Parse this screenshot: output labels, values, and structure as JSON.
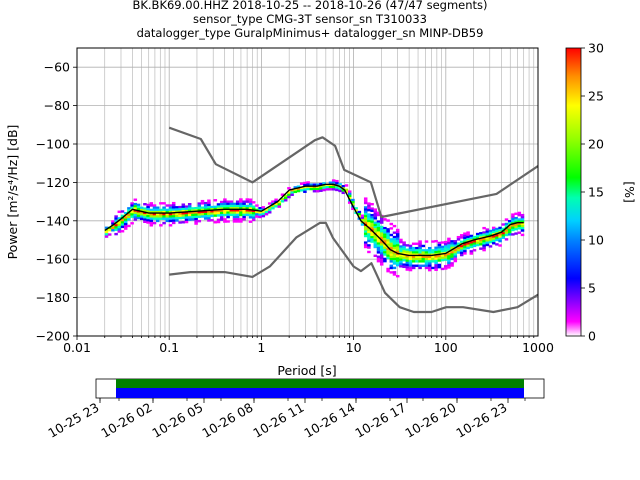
{
  "chart_data": {
    "type": "heatmap",
    "title_lines": [
      "BK.BK69.00.HHZ   2018-10-25 -- 2018-10-26  (47/47 segments)",
      "sensor_type CMG-3T sensor_sn T310033",
      "datalogger_type GuralpMinimus+ datalogger_sn MINP-DB59"
    ],
    "xlabel": "Period [s]",
    "ylabel": "Power [m²/s⁴/Hz] [dB]",
    "xscale": "log",
    "xlim": [
      0.01,
      1000
    ],
    "ylim": [
      -200,
      -50
    ],
    "x_tick_labels": [
      "0.01",
      "0.1",
      "1",
      "10",
      "100",
      "1000"
    ],
    "y_ticks": [
      -60,
      -80,
      -100,
      -120,
      -140,
      -160,
      -180,
      -200
    ],
    "grid": true,
    "colorbar": {
      "label": "[%]",
      "min": 0,
      "max": 30,
      "ticks": [
        0,
        5,
        10,
        15,
        20,
        25,
        30
      ]
    },
    "series": [
      {
        "role": "noise-model-high",
        "x": [
          0.1,
          0.22,
          0.32,
          0.8,
          3.8,
          4.6,
          6.3,
          7.9,
          15.4,
          20,
          354.8,
          1000
        ],
        "y": [
          -91.5,
          -97.4,
          -110.5,
          -120,
          -98,
          -96.5,
          -101,
          -113.5,
          -120,
          -138,
          -126,
          -111.5
        ]
      },
      {
        "role": "noise-model-low",
        "x": [
          0.1,
          0.17,
          0.4,
          0.8,
          1.24,
          2.4,
          4.3,
          5,
          6,
          10,
          12,
          15.6,
          21.9,
          31.6,
          45,
          70,
          101,
          154,
          328,
          600,
          1000
        ],
        "y": [
          -168,
          -166.7,
          -166.7,
          -169.2,
          -163.7,
          -148.6,
          -141.1,
          -141.1,
          -149,
          -163.8,
          -166.2,
          -162.1,
          -177.5,
          -185,
          -187.5,
          -187.5,
          -185,
          -185,
          -187.5,
          -185,
          -178.5
        ]
      },
      {
        "role": "mode",
        "x": [
          0.02,
          0.025,
          0.03,
          0.04,
          0.06,
          0.1,
          0.2,
          0.4,
          0.7,
          1,
          1.5,
          2,
          3,
          4,
          5,
          6,
          7,
          8,
          10,
          12,
          15,
          20,
          25,
          30,
          40,
          50,
          70,
          100,
          150,
          200,
          300,
          400,
          500,
          600,
          700
        ],
        "y": [
          -145,
          -142,
          -139,
          -134,
          -136,
          -136,
          -135,
          -134,
          -134,
          -135,
          -130,
          -124,
          -122,
          -122,
          -121,
          -121,
          -122,
          -124,
          -133,
          -140,
          -144,
          -150,
          -155,
          -157,
          -158,
          -158,
          -158,
          -157,
          -152,
          -150,
          -148,
          -146,
          -142,
          -141,
          -141
        ]
      }
    ],
    "time_axis": {
      "tick_labels": [
        "10-25 23",
        "10-26 02",
        "10-26 05",
        "10-26 08",
        "10-26 11",
        "10-26 14",
        "10-26 17",
        "10-26 20",
        "10-26 23"
      ],
      "bars": [
        "#008000",
        "#0000ff"
      ]
    }
  }
}
